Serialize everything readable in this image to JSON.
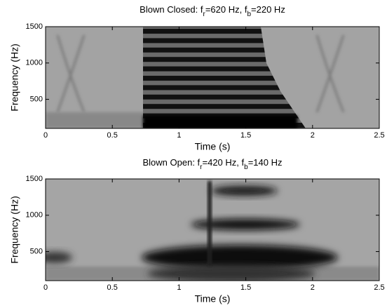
{
  "chart_data": [
    {
      "type": "spectrogram",
      "title_parts": [
        "Blown Closed: f",
        "r",
        "=620 Hz, f",
        "b",
        "=220 Hz"
      ],
      "x_label": "Time (s)",
      "y_label": "Frequency (Hz)",
      "xlim": [
        0,
        2.5
      ],
      "xticks": [
        0,
        0.5,
        1,
        1.5,
        2,
        2.5
      ],
      "ylim": [
        100,
        1500
      ],
      "yticks": [
        500,
        1000,
        1500
      ]
    },
    {
      "type": "spectrogram",
      "title_parts": [
        "Blown Open: f",
        "r",
        "=420 Hz, f",
        "b",
        "=140 Hz"
      ],
      "x_label": "Time (s)",
      "y_label": "Frequency (Hz)",
      "xlim": [
        0,
        2.5
      ],
      "xticks": [
        0,
        0.5,
        1,
        1.5,
        2,
        2.5
      ],
      "ylim": [
        100,
        1500
      ],
      "yticks": [
        500,
        1000,
        1500
      ]
    }
  ]
}
